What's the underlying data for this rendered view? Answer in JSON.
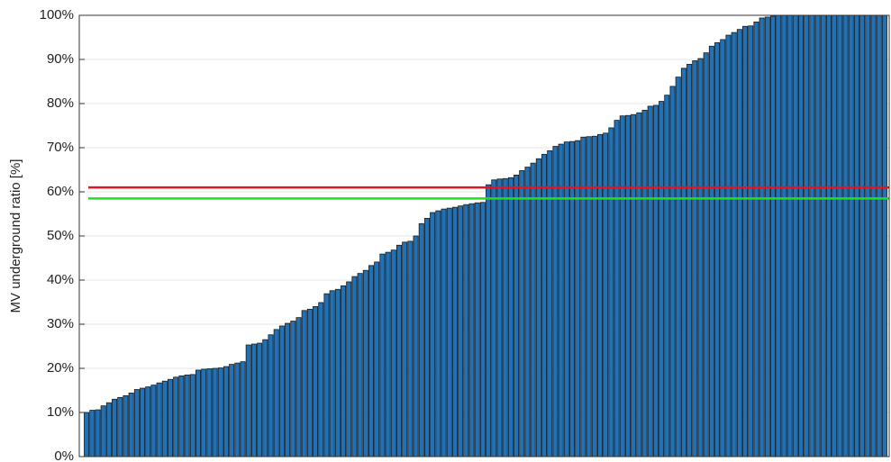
{
  "chart_data": {
    "type": "bar",
    "ylabel": "MV underground ratio [%]",
    "color": "#1f72b8",
    "edgecolor": "#1a1a1a",
    "grid": true,
    "ylim": [
      0,
      100
    ],
    "yticks": [
      {
        "value": 0,
        "label": "0%"
      },
      {
        "value": 10,
        "label": "10%"
      },
      {
        "value": 20,
        "label": "20%"
      },
      {
        "value": 30,
        "label": "30%"
      },
      {
        "value": 40,
        "label": "40%"
      },
      {
        "value": 50,
        "label": "50%"
      },
      {
        "value": 60,
        "label": "60%"
      },
      {
        "value": 70,
        "label": "70%"
      },
      {
        "value": 80,
        "label": "80%"
      },
      {
        "value": 90,
        "label": "90%"
      },
      {
        "value": 100,
        "label": "100%"
      }
    ],
    "hlines": [
      {
        "value": 61,
        "color": "#e8141c"
      },
      {
        "value": 58.5,
        "color": "#22dd22"
      }
    ],
    "values": [
      10,
      10.5,
      10.6,
      11.5,
      12.2,
      13,
      13.4,
      13.8,
      14.4,
      15.2,
      15.5,
      15.8,
      16.2,
      16.7,
      17.1,
      17.5,
      18,
      18.3,
      18.5,
      18.6,
      19.6,
      19.8,
      19.9,
      20,
      20.1,
      20.4,
      20.9,
      21.2,
      21.5,
      25.3,
      25.5,
      25.7,
      26.5,
      27.6,
      28.8,
      29.6,
      30.2,
      30.7,
      31.5,
      33.1,
      33.4,
      34,
      34.9,
      36.9,
      37.6,
      37.9,
      38.7,
      39.6,
      40.8,
      41.5,
      42.2,
      43.3,
      44.1,
      45.9,
      46.3,
      46.8,
      47.9,
      48.6,
      48.8,
      50,
      52.8,
      54,
      55.3,
      55.7,
      56.1,
      56.3,
      56.5,
      56.8,
      57.1,
      57.3,
      57.5,
      57.6,
      61.6,
      62.7,
      62.9,
      63,
      63.2,
      63.8,
      64.8,
      65.6,
      66.5,
      67.5,
      68.5,
      69.3,
      70.3,
      70.8,
      71.3,
      71.4,
      71.6,
      72.4,
      72.5,
      72.6,
      73,
      73.3,
      74.5,
      76.2,
      77.2,
      77.3,
      77.5,
      77.9,
      78.5,
      79.4,
      79.6,
      80.5,
      81.9,
      83.9,
      86,
      88,
      88.9,
      89.7,
      90.2,
      91.5,
      93,
      93.8,
      94.5,
      95.5,
      96.1,
      96.8,
      97.5,
      97.6,
      98.5,
      99.4,
      99.6,
      99.8,
      100,
      100,
      100,
      100,
      100,
      100,
      100,
      100,
      100,
      100,
      100,
      100,
      100,
      100,
      100,
      100,
      100,
      100,
      100,
      100
    ]
  }
}
